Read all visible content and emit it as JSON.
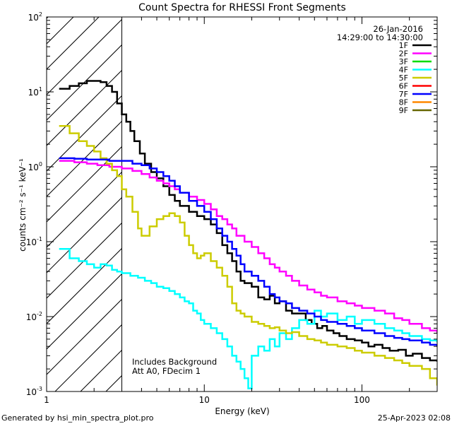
{
  "chart_data": {
    "type": "line",
    "title": "Count Spectra for RHESSI Front Segments",
    "date": "26-Jan-2016",
    "time_range": "14:29:00 to 14:30:00",
    "xlabel": "Energy (keV)",
    "ylabel": "counts cm⁻² s⁻¹ keV⁻¹",
    "xscale": "log",
    "yscale": "log",
    "xlim": [
      1,
      300
    ],
    "ylim": [
      0.001,
      100
    ],
    "x_ticks": [
      {
        "value": 1,
        "label": "1"
      },
      {
        "value": 10,
        "label": "10"
      },
      {
        "value": 100,
        "label": "100"
      }
    ],
    "y_ticks": [
      {
        "value": 0.001,
        "base": "10",
        "exp": "-3"
      },
      {
        "value": 0.01,
        "base": "10",
        "exp": "-2"
      },
      {
        "value": 0.1,
        "base": "10",
        "exp": "-1"
      },
      {
        "value": 1,
        "base": "10",
        "exp": "0"
      },
      {
        "value": 10,
        "base": "10",
        "exp": "1"
      },
      {
        "value": 100,
        "base": "10",
        "exp": "2"
      }
    ],
    "excluded_region": {
      "xmin": 1,
      "xmax": 3,
      "style": "hatched"
    },
    "annotations": [
      "Includes Background",
      "Att A0, FDecim 1"
    ],
    "legend": [
      {
        "name": "1F",
        "color": "#000000"
      },
      {
        "name": "2F",
        "color": "#ff00ff"
      },
      {
        "name": "3F",
        "color": "#00dd00"
      },
      {
        "name": "4F",
        "color": "#00ffff"
      },
      {
        "name": "5F",
        "color": "#cccc00"
      },
      {
        "name": "6F",
        "color": "#ff0000"
      },
      {
        "name": "7F",
        "color": "#0000ff"
      },
      {
        "name": "8F",
        "color": "#ff8800"
      },
      {
        "name": "9F",
        "color": "#666600"
      }
    ],
    "legend_position": "top-right",
    "series": [
      {
        "name": "1F",
        "color": "#000000",
        "points": [
          [
            1.2,
            11
          ],
          [
            1.4,
            12
          ],
          [
            1.6,
            13
          ],
          [
            1.8,
            14
          ],
          [
            2.0,
            14
          ],
          [
            2.2,
            13.5
          ],
          [
            2.4,
            12
          ],
          [
            2.6,
            10
          ],
          [
            2.8,
            7
          ],
          [
            3.0,
            5
          ],
          [
            3.2,
            4
          ],
          [
            3.4,
            3
          ],
          [
            3.6,
            2.2
          ],
          [
            3.9,
            1.5
          ],
          [
            4.2,
            1.1
          ],
          [
            4.6,
            0.85
          ],
          [
            5.0,
            0.7
          ],
          [
            5.5,
            0.55
          ],
          [
            6.0,
            0.42
          ],
          [
            6.5,
            0.35
          ],
          [
            7.0,
            0.3
          ],
          [
            8.0,
            0.25
          ],
          [
            9.0,
            0.22
          ],
          [
            10,
            0.2
          ],
          [
            11,
            0.17
          ],
          [
            12,
            0.13
          ],
          [
            13,
            0.09
          ],
          [
            14,
            0.07
          ],
          [
            15,
            0.055
          ],
          [
            16,
            0.04
          ],
          [
            17,
            0.03
          ],
          [
            18,
            0.028
          ],
          [
            20,
            0.025
          ],
          [
            22,
            0.018
          ],
          [
            24,
            0.017
          ],
          [
            26,
            0.019
          ],
          [
            28,
            0.015
          ],
          [
            30,
            0.016
          ],
          [
            33,
            0.012
          ],
          [
            36,
            0.011
          ],
          [
            40,
            0.011
          ],
          [
            44,
            0.009
          ],
          [
            48,
            0.008
          ],
          [
            52,
            0.007
          ],
          [
            56,
            0.0075
          ],
          [
            60,
            0.0065
          ],
          [
            66,
            0.006
          ],
          [
            72,
            0.0055
          ],
          [
            80,
            0.005
          ],
          [
            90,
            0.0048
          ],
          [
            100,
            0.0045
          ],
          [
            110,
            0.004
          ],
          [
            120,
            0.0042
          ],
          [
            135,
            0.0038
          ],
          [
            150,
            0.0035
          ],
          [
            170,
            0.0036
          ],
          [
            190,
            0.003
          ],
          [
            210,
            0.0032
          ],
          [
            240,
            0.0028
          ],
          [
            270,
            0.0026
          ],
          [
            300,
            0.0025
          ]
        ]
      },
      {
        "name": "2F",
        "color": "#ff00ff",
        "points": [
          [
            1.2,
            1.2
          ],
          [
            1.5,
            1.15
          ],
          [
            1.8,
            1.1
          ],
          [
            2.1,
            1.05
          ],
          [
            2.5,
            1.0
          ],
          [
            3.0,
            0.95
          ],
          [
            3.5,
            0.88
          ],
          [
            4.0,
            0.8
          ],
          [
            4.5,
            0.72
          ],
          [
            5.0,
            0.65
          ],
          [
            5.5,
            0.6
          ],
          [
            6.0,
            0.55
          ],
          [
            6.5,
            0.5
          ],
          [
            7.0,
            0.45
          ],
          [
            8.0,
            0.4
          ],
          [
            9.0,
            0.36
          ],
          [
            10,
            0.32
          ],
          [
            11,
            0.27
          ],
          [
            12,
            0.22
          ],
          [
            13,
            0.2
          ],
          [
            14,
            0.17
          ],
          [
            15,
            0.15
          ],
          [
            16,
            0.12
          ],
          [
            18,
            0.1
          ],
          [
            20,
            0.085
          ],
          [
            22,
            0.07
          ],
          [
            24,
            0.06
          ],
          [
            26,
            0.05
          ],
          [
            28,
            0.045
          ],
          [
            30,
            0.04
          ],
          [
            33,
            0.035
          ],
          [
            36,
            0.03
          ],
          [
            40,
            0.026
          ],
          [
            45,
            0.023
          ],
          [
            50,
            0.021
          ],
          [
            55,
            0.019
          ],
          [
            60,
            0.018
          ],
          [
            70,
            0.016
          ],
          [
            80,
            0.015
          ],
          [
            90,
            0.014
          ],
          [
            100,
            0.013
          ],
          [
            120,
            0.012
          ],
          [
            140,
            0.011
          ],
          [
            160,
            0.0095
          ],
          [
            180,
            0.009
          ],
          [
            200,
            0.008
          ],
          [
            240,
            0.007
          ],
          [
            270,
            0.0065
          ],
          [
            300,
            0.006
          ]
        ]
      },
      {
        "name": "4F",
        "color": "#00ffff",
        "points": [
          [
            1.2,
            0.08
          ],
          [
            1.4,
            0.06
          ],
          [
            1.6,
            0.055
          ],
          [
            1.8,
            0.05
          ],
          [
            2.0,
            0.045
          ],
          [
            2.2,
            0.05
          ],
          [
            2.4,
            0.048
          ],
          [
            2.6,
            0.042
          ],
          [
            2.8,
            0.04
          ],
          [
            3.0,
            0.038
          ],
          [
            3.4,
            0.035
          ],
          [
            3.8,
            0.033
          ],
          [
            4.2,
            0.03
          ],
          [
            4.6,
            0.028
          ],
          [
            5.0,
            0.025
          ],
          [
            5.5,
            0.024
          ],
          [
            6.0,
            0.022
          ],
          [
            6.5,
            0.02
          ],
          [
            7.0,
            0.018
          ],
          [
            7.5,
            0.016
          ],
          [
            8.0,
            0.015
          ],
          [
            8.5,
            0.012
          ],
          [
            9.0,
            0.011
          ],
          [
            9.5,
            0.009
          ],
          [
            10,
            0.008
          ],
          [
            11,
            0.007
          ],
          [
            12,
            0.006
          ],
          [
            13,
            0.005
          ],
          [
            14,
            0.004
          ],
          [
            15,
            0.003
          ],
          [
            16,
            0.0025
          ],
          [
            17,
            0.002
          ],
          [
            18,
            0.0015
          ],
          [
            19,
            0.0011
          ],
          [
            20,
            0.003
          ],
          [
            22,
            0.004
          ],
          [
            24,
            0.0035
          ],
          [
            26,
            0.005
          ],
          [
            28,
            0.004
          ],
          [
            30,
            0.006
          ],
          [
            33,
            0.005
          ],
          [
            36,
            0.007
          ],
          [
            40,
            0.009
          ],
          [
            45,
            0.008
          ],
          [
            50,
            0.012
          ],
          [
            55,
            0.01
          ],
          [
            60,
            0.011
          ],
          [
            70,
            0.009
          ],
          [
            80,
            0.01
          ],
          [
            90,
            0.008
          ],
          [
            100,
            0.009
          ],
          [
            120,
            0.008
          ],
          [
            140,
            0.007
          ],
          [
            160,
            0.0065
          ],
          [
            180,
            0.006
          ],
          [
            200,
            0.0055
          ],
          [
            240,
            0.005
          ],
          [
            270,
            0.0048
          ],
          [
            300,
            0.0045
          ]
        ]
      },
      {
        "name": "5F",
        "color": "#cccc00",
        "points": [
          [
            1.2,
            3.5
          ],
          [
            1.4,
            2.8
          ],
          [
            1.6,
            2.2
          ],
          [
            1.8,
            1.9
          ],
          [
            2.0,
            1.6
          ],
          [
            2.2,
            1.3
          ],
          [
            2.4,
            1.1
          ],
          [
            2.6,
            0.9
          ],
          [
            2.8,
            0.75
          ],
          [
            3.0,
            0.5
          ],
          [
            3.2,
            0.4
          ],
          [
            3.5,
            0.25
          ],
          [
            3.8,
            0.15
          ],
          [
            4.0,
            0.12
          ],
          [
            4.5,
            0.16
          ],
          [
            5.0,
            0.2
          ],
          [
            5.5,
            0.22
          ],
          [
            6.0,
            0.24
          ],
          [
            6.5,
            0.22
          ],
          [
            7.0,
            0.18
          ],
          [
            7.5,
            0.12
          ],
          [
            8.0,
            0.09
          ],
          [
            8.5,
            0.07
          ],
          [
            9.0,
            0.06
          ],
          [
            9.5,
            0.065
          ],
          [
            10,
            0.07
          ],
          [
            11,
            0.055
          ],
          [
            12,
            0.045
          ],
          [
            13,
            0.035
          ],
          [
            14,
            0.025
          ],
          [
            15,
            0.015
          ],
          [
            16,
            0.012
          ],
          [
            17,
            0.011
          ],
          [
            18,
            0.01
          ],
          [
            20,
            0.0085
          ],
          [
            22,
            0.008
          ],
          [
            24,
            0.0075
          ],
          [
            26,
            0.007
          ],
          [
            28,
            0.0072
          ],
          [
            30,
            0.0065
          ],
          [
            33,
            0.006
          ],
          [
            36,
            0.0062
          ],
          [
            40,
            0.0055
          ],
          [
            45,
            0.005
          ],
          [
            50,
            0.0048
          ],
          [
            55,
            0.0045
          ],
          [
            60,
            0.0042
          ],
          [
            70,
            0.004
          ],
          [
            80,
            0.0038
          ],
          [
            90,
            0.0035
          ],
          [
            100,
            0.0033
          ],
          [
            120,
            0.003
          ],
          [
            140,
            0.0028
          ],
          [
            160,
            0.0026
          ],
          [
            180,
            0.0024
          ],
          [
            200,
            0.0022
          ],
          [
            240,
            0.002
          ],
          [
            270,
            0.0015
          ],
          [
            300,
            0.0012
          ]
        ]
      },
      {
        "name": "7F",
        "color": "#0000ff",
        "points": [
          [
            1.2,
            1.3
          ],
          [
            1.5,
            1.28
          ],
          [
            1.8,
            1.25
          ],
          [
            2.1,
            1.25
          ],
          [
            2.5,
            1.2
          ],
          [
            3.0,
            1.2
          ],
          [
            3.5,
            1.1
          ],
          [
            4.0,
            1.05
          ],
          [
            4.5,
            0.95
          ],
          [
            5.0,
            0.85
          ],
          [
            5.5,
            0.75
          ],
          [
            6.0,
            0.65
          ],
          [
            6.5,
            0.55
          ],
          [
            7.0,
            0.45
          ],
          [
            8.0,
            0.35
          ],
          [
            9.0,
            0.3
          ],
          [
            10,
            0.25
          ],
          [
            11,
            0.2
          ],
          [
            12,
            0.15
          ],
          [
            13,
            0.12
          ],
          [
            14,
            0.1
          ],
          [
            15,
            0.08
          ],
          [
            16,
            0.065
          ],
          [
            17,
            0.05
          ],
          [
            18,
            0.04
          ],
          [
            20,
            0.035
          ],
          [
            22,
            0.03
          ],
          [
            24,
            0.025
          ],
          [
            26,
            0.02
          ],
          [
            28,
            0.018
          ],
          [
            30,
            0.016
          ],
          [
            33,
            0.015
          ],
          [
            36,
            0.013
          ],
          [
            40,
            0.012
          ],
          [
            45,
            0.011
          ],
          [
            50,
            0.01
          ],
          [
            55,
            0.009
          ],
          [
            60,
            0.0085
          ],
          [
            70,
            0.008
          ],
          [
            80,
            0.0075
          ],
          [
            90,
            0.007
          ],
          [
            100,
            0.0065
          ],
          [
            120,
            0.006
          ],
          [
            140,
            0.0055
          ],
          [
            160,
            0.0052
          ],
          [
            180,
            0.005
          ],
          [
            200,
            0.0048
          ],
          [
            240,
            0.0045
          ],
          [
            270,
            0.0042
          ],
          [
            300,
            0.004
          ]
        ]
      }
    ]
  },
  "footer": {
    "generated_by": "Generated by hsi_min_spectra_plot.pro",
    "timestamp": "25-Apr-2023 02:08"
  }
}
